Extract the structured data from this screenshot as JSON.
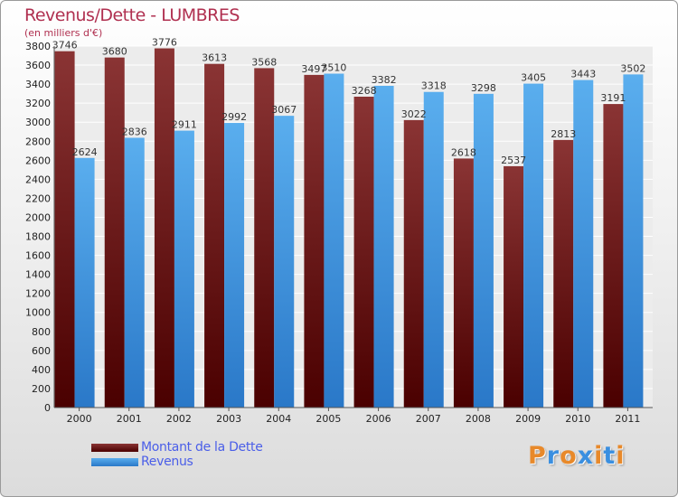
{
  "chart_data": {
    "type": "bar",
    "title": "Revenus/Dette - LUMBRES",
    "subtitle": "(en milliers d'€)",
    "categories": [
      "2000",
      "2001",
      "2002",
      "2003",
      "2004",
      "2005",
      "2006",
      "2007",
      "2008",
      "2009",
      "2010",
      "2011"
    ],
    "series": [
      {
        "name": "Montant de la Dette",
        "color": "#6b0f0f",
        "values": [
          3746,
          3680,
          3776,
          3613,
          3568,
          3497,
          3268,
          3022,
          2618,
          2537,
          2813,
          3191
        ]
      },
      {
        "name": "Revenus",
        "color": "#3a8fe0",
        "values": [
          2624,
          2836,
          2911,
          2992,
          3067,
          3510,
          3382,
          3318,
          3298,
          3405,
          3443,
          3502
        ]
      }
    ],
    "ylim": [
      0,
      3800
    ],
    "yticks": [
      0,
      200,
      400,
      600,
      800,
      1000,
      1200,
      1400,
      1600,
      1800,
      2000,
      2200,
      2400,
      2600,
      2800,
      3000,
      3200,
      3400,
      3600,
      3800
    ],
    "grid": true,
    "legend_position": "bottom-left"
  },
  "logo_text": "Proxiti",
  "logo_colors": [
    "#e8892a",
    "#3a8fe0",
    "#e8892a",
    "#3a8fe0",
    "#e8892a",
    "#3a8fe0",
    "#e8892a"
  ]
}
